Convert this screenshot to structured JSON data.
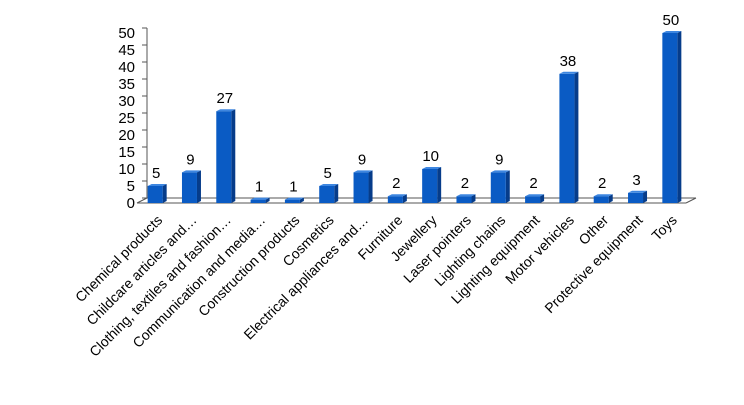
{
  "chart_data": {
    "type": "bar",
    "title": "",
    "xlabel": "",
    "ylabel": "",
    "ylim": [
      0,
      50
    ],
    "yticks": [
      0,
      5,
      10,
      15,
      20,
      25,
      30,
      35,
      40,
      45,
      50
    ],
    "grid": false,
    "legend": "none",
    "style": "3d-column",
    "colors": {
      "bar_front": "#0a5bc4",
      "bar_side": "#063c8a",
      "bar_top": "#3d86e0",
      "axis": "#555555"
    },
    "categories": [
      "Chemical products",
      "Childcare articles and…",
      "Clothing, textiles and fashion…",
      "Communication and media…",
      "Construction products",
      "Cosmetics",
      "Electrical appliances and…",
      "Furniture",
      "Jewellery",
      "Laser pointers",
      "Lighting chains",
      "Lighting equipment",
      "Motor vehicles",
      "Other",
      "Protective equipment",
      "Toys"
    ],
    "values": [
      5,
      9,
      27,
      1,
      1,
      5,
      9,
      2,
      10,
      2,
      9,
      2,
      38,
      2,
      3,
      50
    ],
    "data_labels": [
      "5",
      "9",
      "27",
      "1",
      "1",
      "5",
      "9",
      "2",
      "10",
      "2",
      "9",
      "2",
      "38",
      "2",
      "3",
      "50"
    ]
  }
}
